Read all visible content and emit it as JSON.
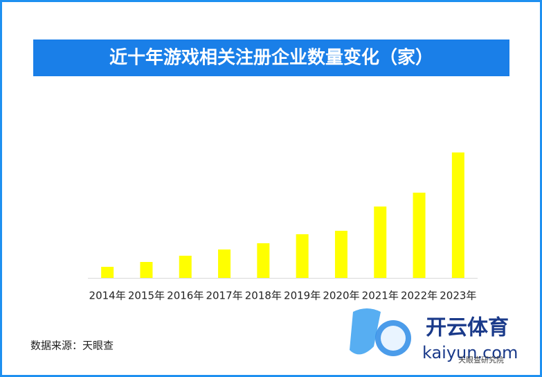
{
  "chart_data": {
    "type": "bar",
    "title": "近十年游戏相关注册企业数量变化（家）",
    "categories": [
      "2014年",
      "2015年",
      "2016年",
      "2017年",
      "2018年",
      "2019年",
      "2020年",
      "2021年",
      "2022年",
      "2023年"
    ],
    "values": [
      16,
      23,
      32,
      41,
      50,
      63,
      68,
      103,
      123,
      181
    ],
    "color": "#ffff00",
    "ylim": [
      0,
      200
    ],
    "source": "数据来源：天眼查"
  },
  "watermark": {
    "brand": "开云体育",
    "site": "kaiyun.com",
    "institute": "天眼查研究院"
  }
}
